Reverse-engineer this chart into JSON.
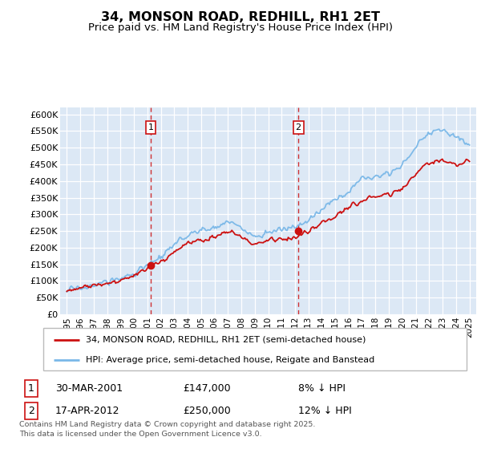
{
  "title": "34, MONSON ROAD, REDHILL, RH1 2ET",
  "subtitle": "Price paid vs. HM Land Registry's House Price Index (HPI)",
  "bg_color": "#dce8f5",
  "grid_color": "#ffffff",
  "hpi_color": "#7ab8e8",
  "price_color": "#cc1111",
  "ylim": [
    0,
    620000
  ],
  "yticks": [
    0,
    50000,
    100000,
    150000,
    200000,
    250000,
    300000,
    350000,
    400000,
    450000,
    500000,
    550000,
    600000
  ],
  "years": [
    "1995",
    "1996",
    "1997",
    "1998",
    "1999",
    "2000",
    "2001",
    "2002",
    "2003",
    "2004",
    "2005",
    "2006",
    "2007",
    "2008",
    "2009",
    "2010",
    "2011",
    "2012",
    "2013",
    "2014",
    "2015",
    "2016",
    "2017",
    "2018",
    "2019",
    "2020",
    "2021",
    "2022",
    "2023",
    "2024",
    "2025"
  ],
  "hpi_annual": [
    72000,
    78000,
    88000,
    97000,
    107000,
    124000,
    144000,
    172000,
    205000,
    240000,
    250000,
    262000,
    278000,
    258000,
    232000,
    248000,
    253000,
    262000,
    280000,
    315000,
    345000,
    370000,
    408000,
    420000,
    425000,
    445000,
    505000,
    545000,
    555000,
    535000,
    510000
  ],
  "price_annual": [
    72000,
    78000,
    86000,
    94000,
    102000,
    118000,
    136000,
    158000,
    186000,
    213000,
    222000,
    231000,
    247000,
    230000,
    207000,
    221000,
    224000,
    232000,
    247000,
    272000,
    296000,
    316000,
    345000,
    355000,
    360000,
    375000,
    425000,
    455000,
    462000,
    447000,
    460000
  ],
  "sale1_year_idx": 6.25,
  "sale1_value": 147000,
  "sale2_year_idx": 17.25,
  "sale2_value": 250000,
  "legend_line1": "34, MONSON ROAD, REDHILL, RH1 2ET (semi-detached house)",
  "legend_line2": "HPI: Average price, semi-detached house, Reigate and Banstead",
  "ann1_date": "30-MAR-2001",
  "ann1_price": "£147,000",
  "ann1_hpi": "8% ↓ HPI",
  "ann2_date": "17-APR-2012",
  "ann2_price": "£250,000",
  "ann2_hpi": "12% ↓ HPI",
  "footer": "Contains HM Land Registry data © Crown copyright and database right 2025.\nThis data is licensed under the Open Government Licence v3.0."
}
